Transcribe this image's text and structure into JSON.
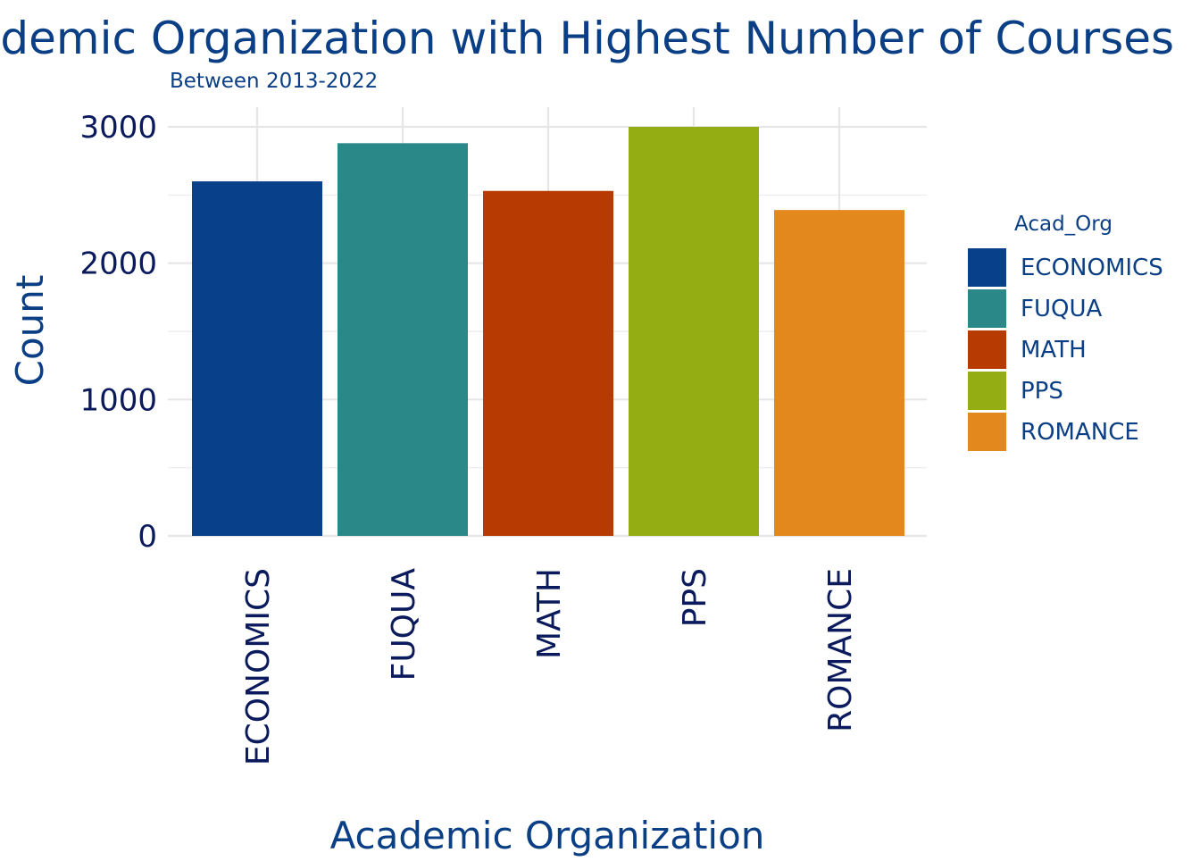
{
  "chart_data": {
    "type": "bar",
    "title": "Academic Organization with Highest Number of Courses",
    "subtitle": "Between 2013-2022",
    "xlabel": "Academic Organization",
    "ylabel": "Count",
    "categories": [
      "ECONOMICS",
      "FUQUA",
      "MATH",
      "PPS",
      "ROMANCE"
    ],
    "values": [
      2600,
      2880,
      2530,
      3000,
      2390
    ],
    "colors": [
      "#08408a",
      "#2b8888",
      "#b73a02",
      "#93ad12",
      "#e2881c"
    ],
    "ylim": [
      0,
      3000
    ],
    "yticks": [
      0,
      1000,
      2000,
      3000
    ],
    "ytick_labels": [
      "0",
      "1000",
      "2000",
      "3000"
    ],
    "grid": true,
    "legend": {
      "title": "Acad_Org",
      "position": "right",
      "entries": [
        "ECONOMICS",
        "FUQUA",
        "MATH",
        "PPS",
        "ROMANCE"
      ]
    }
  }
}
